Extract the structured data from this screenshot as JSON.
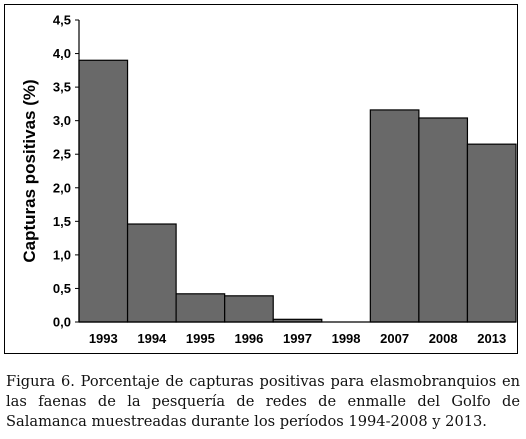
{
  "chart_data": {
    "type": "bar",
    "categories": [
      "1993",
      "1994",
      "1995",
      "1996",
      "1997",
      "1998",
      "2007",
      "2008",
      "2013"
    ],
    "values": [
      3.9,
      1.46,
      0.42,
      0.39,
      0.04,
      0.0,
      3.16,
      3.04,
      2.65
    ],
    "ylabel": "Capturas positivas  (%)",
    "xlabel": "",
    "ylim": [
      0,
      4.5
    ],
    "yticks": [
      "0,0",
      "0,5",
      "1,0",
      "1,5",
      "2,0",
      "2,5",
      "3,0",
      "3,5",
      "4,0",
      "4,5"
    ],
    "bar_color": "#696969",
    "grid": false,
    "legend": "none"
  },
  "caption": {
    "label": "Figura 6.",
    "text": "Porcentaje de capturas positivas para elasmobranquios en las faenas de la pesquería de redes de enmalle del Golfo de Salamanca muestreadas durante los períodos 1994-2008 y 2013."
  }
}
